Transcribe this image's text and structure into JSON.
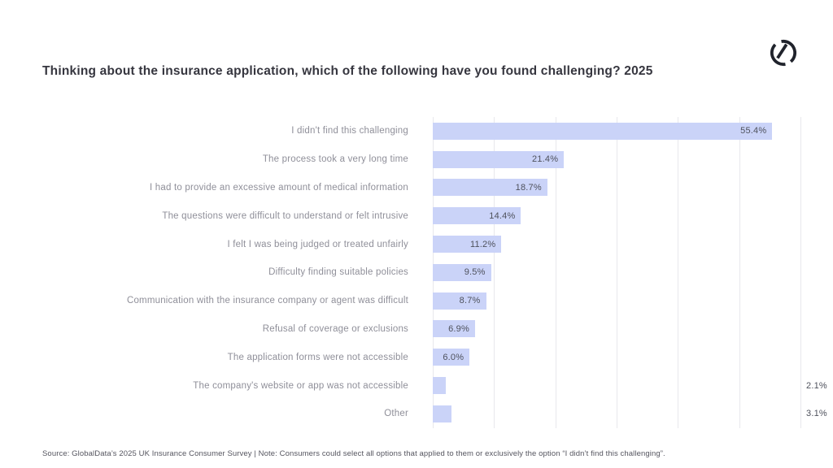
{
  "title": "Thinking about the insurance application, which of the following have you found challenging? 2025",
  "source": "Source: GlobalData’s 2025 UK Insurance Consumer Survey | Note: Consumers could select all options that applied to them or exclusively the option “I didn’t find this challenging”.",
  "logo": {
    "name": "globaldata-logo",
    "color": "#20232c"
  },
  "colors": {
    "bar": "#cad3f8",
    "grid": "#e8e8ec",
    "category_label": "#8f8f99",
    "value_label": "#4e515c",
    "title": "#36363f"
  },
  "chart_data": {
    "type": "bar",
    "orientation": "horizontal",
    "title": "Thinking about the insurance application, which of the following have you found challenging? 2025",
    "categories": [
      "I didn't find this challenging",
      "The process took a very long time",
      "I had to provide an excessive amount of medical information",
      "The questions were difficult to understand or felt intrusive",
      "I felt I was being judged or treated unfairly",
      "Difficulty finding suitable policies",
      "Communication with the insurance company or agent was difficult",
      "Refusal of coverage or exclusions",
      "The application forms were not accessible",
      "The company's website or app was not accessible",
      "Other"
    ],
    "values": [
      55.4,
      21.4,
      18.7,
      14.4,
      11.2,
      9.5,
      8.7,
      6.9,
      6.0,
      2.1,
      3.1
    ],
    "value_labels": [
      "55.4%",
      "21.4%",
      "18.7%",
      "14.4%",
      "11.2%",
      "9.5%",
      "8.7%",
      "6.9%",
      "6.0%",
      "2.1%",
      "3.1%"
    ],
    "xlabel": "",
    "ylabel": "",
    "xlim": [
      0,
      60
    ],
    "gridline_step": 10,
    "grid": true,
    "legend": false,
    "tick_labels_shown": false
  }
}
